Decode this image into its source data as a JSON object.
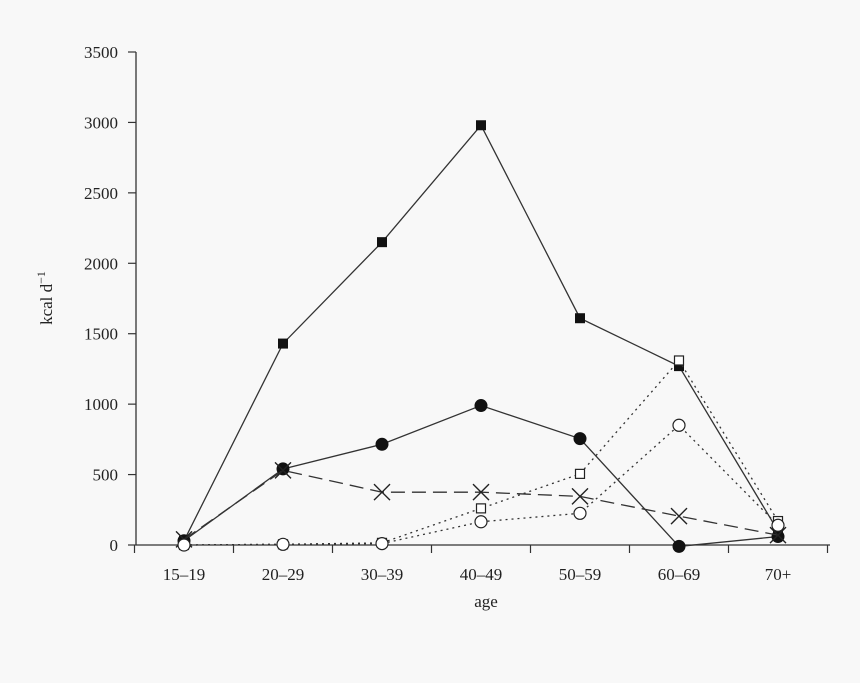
{
  "chart_data": {
    "type": "line",
    "title": "",
    "xlabel": "age",
    "ylabel": "kcal d",
    "ylabel_superscript": "−1",
    "categories": [
      "15–19",
      "20–29",
      "30–39",
      "40–49",
      "50–59",
      "60–69",
      "70+"
    ],
    "yticks": [
      "0",
      "500",
      "1000",
      "1500",
      "2000",
      "2500",
      "3000",
      "3500"
    ],
    "ylim": [
      0,
      3500
    ],
    "grid": false,
    "legend": "none",
    "series": [
      {
        "marker": "filled-square",
        "line": "solid",
        "values": [
          30,
          1430,
          2150,
          2980,
          1610,
          1270,
          100
        ]
      },
      {
        "marker": "filled-circle",
        "line": "solid",
        "values": [
          30,
          540,
          715,
          990,
          755,
          -10,
          60
        ]
      },
      {
        "marker": "cross",
        "line": "dashed",
        "values": [
          40,
          530,
          375,
          375,
          345,
          205,
          70
        ]
      },
      {
        "marker": "open-square",
        "line": "dotted",
        "values": [
          0,
          5,
          15,
          260,
          505,
          1310,
          170
        ]
      },
      {
        "marker": "open-circle",
        "line": "dotted",
        "values": [
          0,
          5,
          10,
          165,
          225,
          850,
          140
        ]
      }
    ]
  }
}
